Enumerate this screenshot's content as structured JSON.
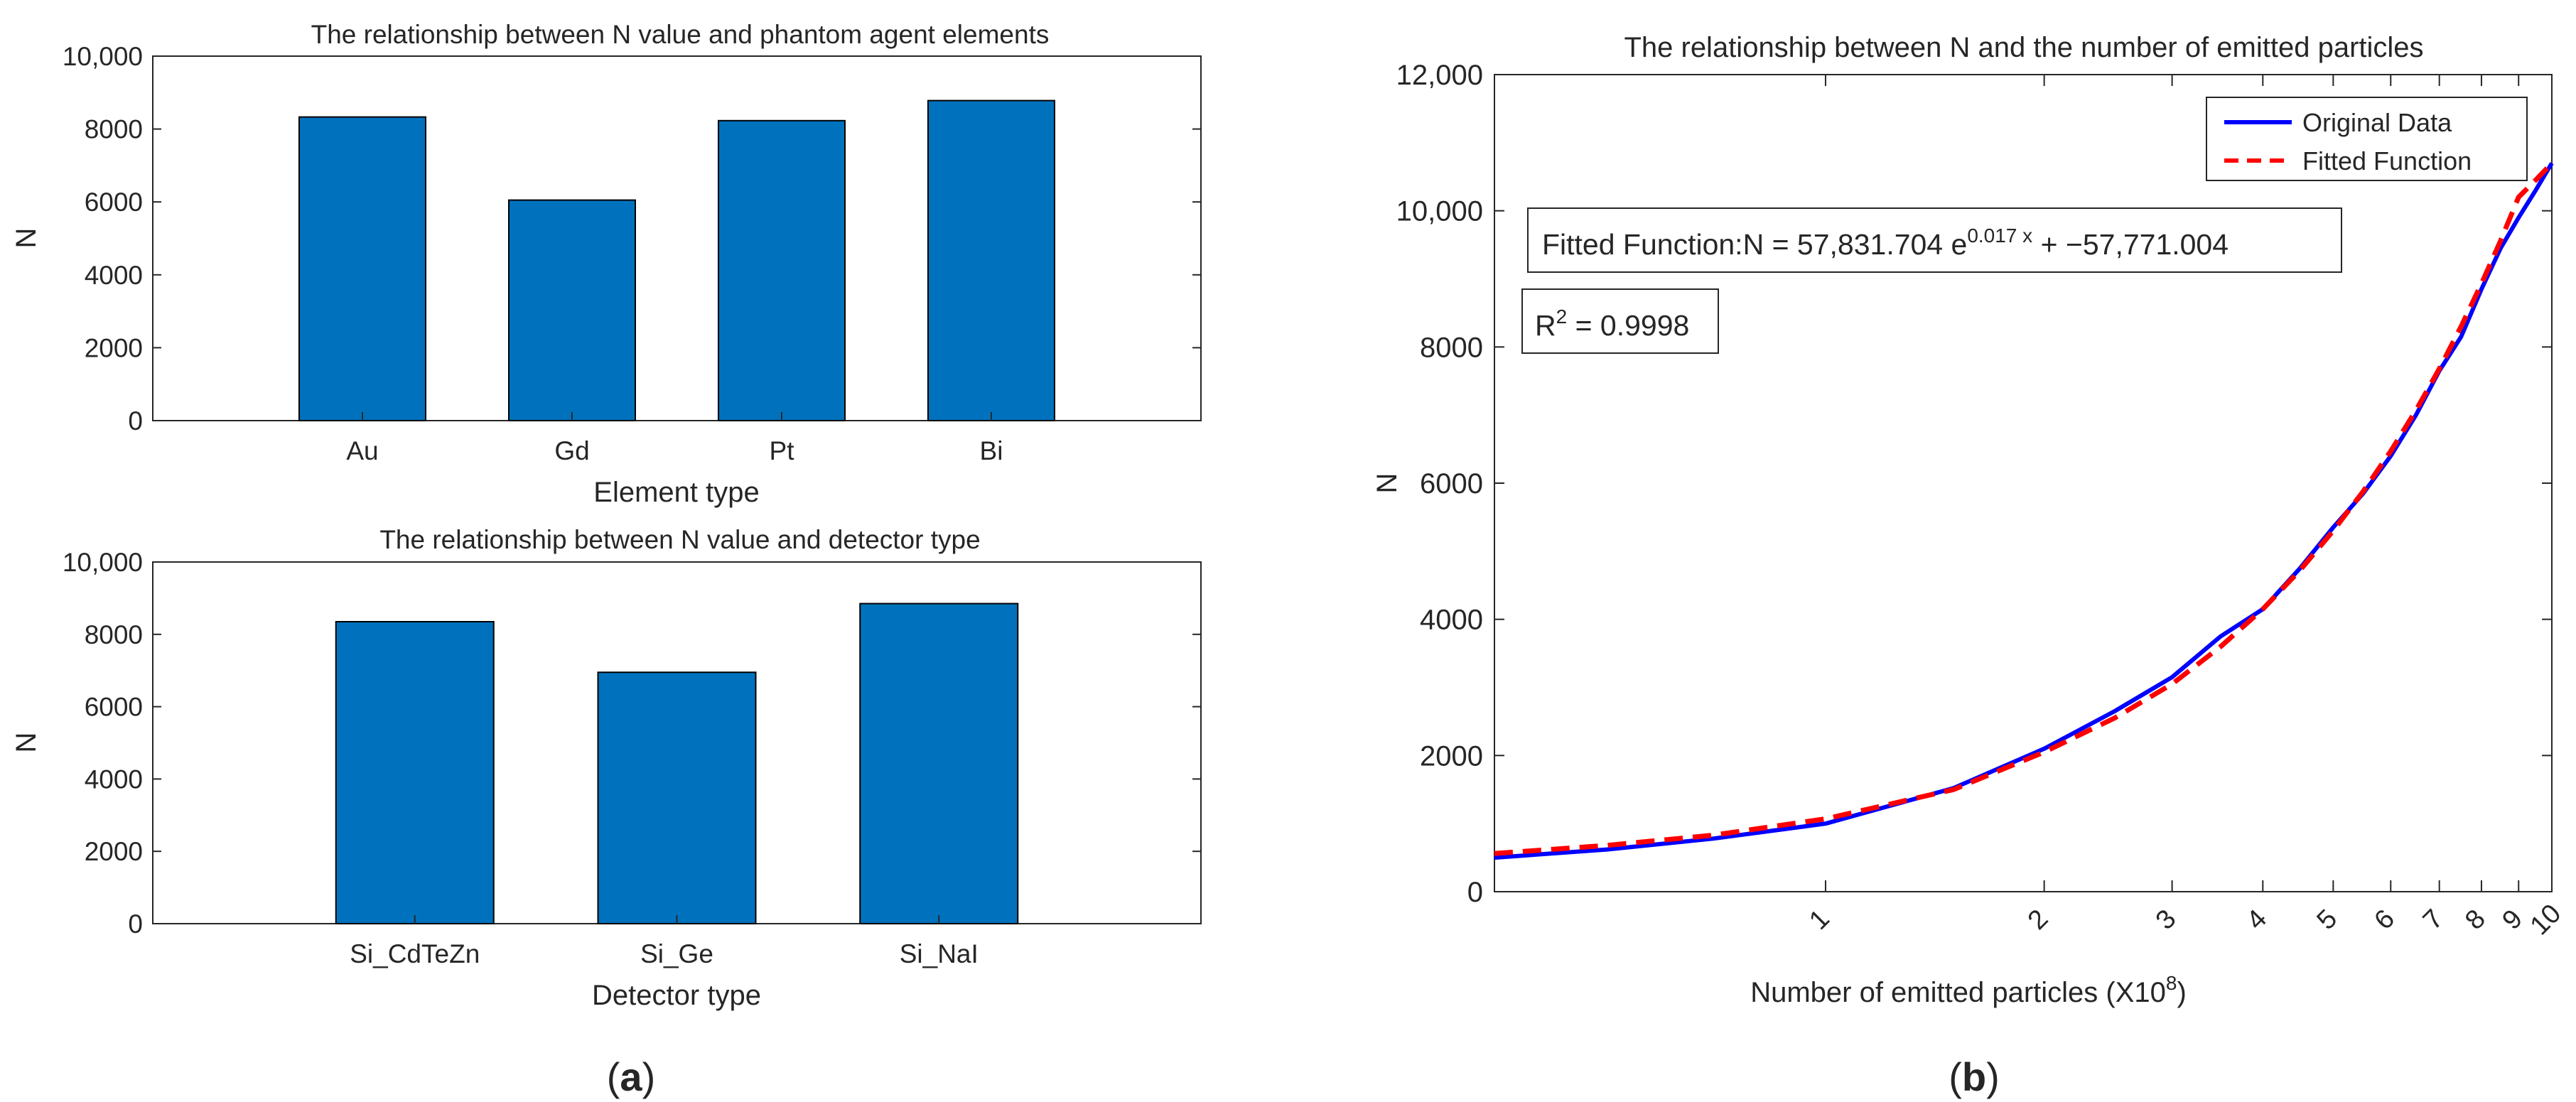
{
  "panel_labels": {
    "a": "a",
    "b": "b"
  },
  "colors": {
    "bar": "#0072BD",
    "original_line": "#0000FF",
    "fitted_line": "#FF0000",
    "axis": "#262626"
  },
  "chart_data": [
    {
      "id": "top-left",
      "type": "bar",
      "title": "The relationship between N value and phantom agent elements",
      "xlabel": "Element type",
      "ylabel": "N",
      "categories": [
        "Au",
        "Gd",
        "Pt",
        "Bi"
      ],
      "values": [
        8330,
        6050,
        8230,
        8780
      ],
      "ylim": [
        0,
        10000
      ],
      "yticks": [
        0,
        2000,
        4000,
        6000,
        8000,
        10000
      ],
      "ytick_labels": [
        "0",
        "2000",
        "4000",
        "6000",
        "8000",
        "10,000"
      ],
      "grid": false
    },
    {
      "id": "bottom-left",
      "type": "bar",
      "title": "The relationship between N value and detector type",
      "xlabel": "Detector type",
      "ylabel": "N",
      "categories": [
        "Si_CdTeZn",
        "Si_Ge",
        "Si_NaI"
      ],
      "values": [
        8350,
        6950,
        8850
      ],
      "ylim": [
        0,
        10000
      ],
      "yticks": [
        0,
        2000,
        4000,
        6000,
        8000,
        10000
      ],
      "ytick_labels": [
        "0",
        "2000",
        "4000",
        "6000",
        "8000",
        "10,000"
      ],
      "grid": false
    },
    {
      "id": "right",
      "type": "line",
      "title": "The relationship between N and the number of emitted particles",
      "xlabel": "Number of emitted particles (X10",
      "xlabel_sup": "8",
      "xlabel_tail": ")",
      "ylabel": "N",
      "x_scale": "log",
      "xlim": [
        0.35,
        10
      ],
      "xticks": [
        1,
        2,
        3,
        4,
        5,
        6,
        7,
        8,
        9,
        10
      ],
      "xtick_labels": [
        "1",
        "2",
        "3",
        "4",
        "5",
        "6",
        "7",
        "8",
        "9",
        "10"
      ],
      "ylim": [
        0,
        12000
      ],
      "yticks": [
        0,
        2000,
        4000,
        6000,
        8000,
        10000,
        12000
      ],
      "ytick_labels": [
        "0",
        "2000",
        "4000",
        "6000",
        "8000",
        "10,000",
        "12,000"
      ],
      "series": [
        {
          "name": "Original Data",
          "style": "solid",
          "x": [
            0.35,
            0.5,
            0.7,
            1,
            1.5,
            2,
            2.5,
            3,
            3.5,
            4,
            4.5,
            5,
            5.5,
            6,
            6.5,
            7,
            7.5,
            8,
            8.5,
            9,
            9.5,
            10
          ],
          "y": [
            500,
            620,
            780,
            1000,
            1520,
            2100,
            2650,
            3150,
            3750,
            4150,
            4750,
            5350,
            5850,
            6400,
            7000,
            7650,
            8150,
            8850,
            9450,
            9900,
            10300,
            10700
          ]
        },
        {
          "name": "Fitted Function",
          "style": "dashed",
          "x": [
            0.35,
            0.5,
            0.7,
            1,
            1.5,
            2,
            2.5,
            3,
            3.5,
            4,
            4.5,
            5,
            5.5,
            6,
            6.5,
            7,
            7.5,
            8,
            8.5,
            9,
            9.5,
            10
          ],
          "y": [
            560,
            680,
            830,
            1070,
            1500,
            2050,
            2550,
            3050,
            3600,
            4150,
            4720,
            5300,
            5880,
            6470,
            7070,
            7680,
            8300,
            8930,
            9560,
            10200,
            10450,
            10700
          ]
        }
      ],
      "legend_position": "top-right",
      "annotations": {
        "fit_prefix": "Fitted Function:N = 57,831.704 e",
        "fit_exponent": "0.017 x",
        "fit_suffix": " + −57,771.004",
        "r2_label": "R",
        "r2_sup": "2",
        "r2_value": " = 0.9998"
      },
      "grid": false
    }
  ]
}
